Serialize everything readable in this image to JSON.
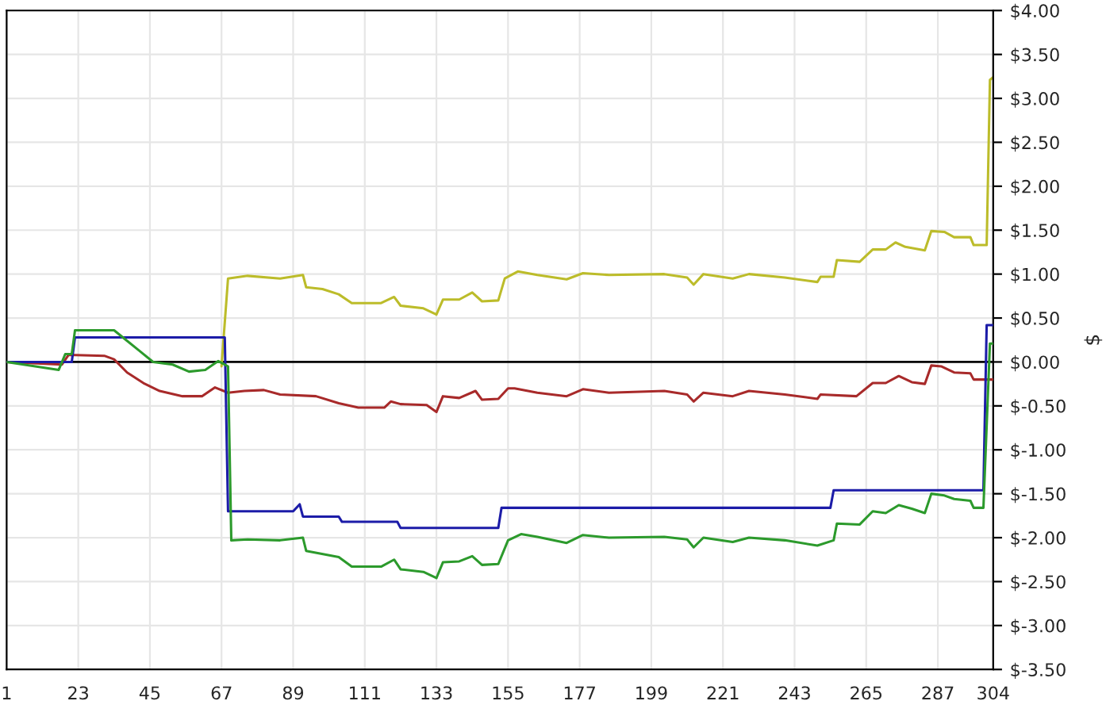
{
  "chart_data": {
    "type": "line",
    "ylabel": "$",
    "xlim": [
      1,
      304
    ],
    "ylim": [
      -3.5,
      4
    ],
    "xticks": [
      1,
      23,
      45,
      67,
      89,
      111,
      133,
      155,
      177,
      199,
      221,
      243,
      265,
      287,
      304
    ],
    "yticks": [
      {
        "value": 4,
        "label": "$4.00"
      },
      {
        "value": 3.5,
        "label": "$3.50"
      },
      {
        "value": 3,
        "label": "$3.00"
      },
      {
        "value": 2.5,
        "label": "$2.50"
      },
      {
        "value": 2,
        "label": "$2.00"
      },
      {
        "value": 1.5,
        "label": "$1.50"
      },
      {
        "value": 1,
        "label": "$1.00"
      },
      {
        "value": 0.5,
        "label": "$0.50"
      },
      {
        "value": 0,
        "label": "$0.00"
      },
      {
        "value": -0.5,
        "label": "$-0.50"
      },
      {
        "value": -1,
        "label": "$-1.00"
      },
      {
        "value": -1.5,
        "label": "$-1.50"
      },
      {
        "value": -2,
        "label": "$-2.00"
      },
      {
        "value": -2.5,
        "label": "$-2.50"
      },
      {
        "value": -3,
        "label": "$-3.00"
      },
      {
        "value": -3.5,
        "label": "$-3.50"
      }
    ],
    "grid": true,
    "marker": "none",
    "line_style": "solid",
    "ref_lines": [
      {
        "axis": "y",
        "value": 0,
        "color": "#000000"
      }
    ],
    "series": [
      {
        "color": "#bcbc2a",
        "x": [
          67,
          69,
          75,
          85,
          92,
          93,
          98,
          103,
          107,
          116,
          120,
          122,
          129,
          133,
          135,
          140,
          144,
          147,
          152,
          154,
          158,
          164,
          173,
          178,
          186,
          203,
          210,
          212,
          215,
          224,
          229,
          240,
          250,
          251,
          255,
          256,
          263,
          267,
          271,
          274,
          277,
          283,
          285,
          289,
          292,
          297,
          298,
          302,
          303,
          304
        ],
        "values": [
          -0.05,
          0.95,
          0.98,
          0.95,
          0.99,
          0.85,
          0.83,
          0.77,
          0.67,
          0.67,
          0.74,
          0.64,
          0.61,
          0.54,
          0.71,
          0.71,
          0.79,
          0.69,
          0.7,
          0.95,
          1.03,
          0.99,
          0.94,
          1.01,
          0.99,
          1.0,
          0.96,
          0.88,
          1.0,
          0.95,
          1.0,
          0.96,
          0.91,
          0.97,
          0.97,
          1.16,
          1.14,
          1.28,
          1.28,
          1.36,
          1.31,
          1.27,
          1.49,
          1.48,
          1.42,
          1.42,
          1.33,
          1.33,
          3.21,
          3.24
        ]
      },
      {
        "color": "#a82a2a",
        "x": [
          1,
          18,
          20,
          31,
          34,
          38,
          43,
          48,
          55,
          61,
          65,
          69,
          74,
          80,
          85,
          96,
          103,
          109,
          117,
          119,
          122,
          130,
          133,
          135,
          140,
          145,
          147,
          152,
          155,
          157,
          164,
          173,
          178,
          186,
          203,
          210,
          212,
          215,
          224,
          229,
          240,
          250,
          251,
          262,
          267,
          271,
          275,
          279,
          283,
          285,
          288,
          292,
          297,
          298,
          304
        ],
        "values": [
          0.0,
          -0.03,
          0.08,
          0.07,
          0.03,
          -0.12,
          -0.24,
          -0.33,
          -0.39,
          -0.39,
          -0.29,
          -0.35,
          -0.33,
          -0.32,
          -0.37,
          -0.39,
          -0.47,
          -0.52,
          -0.52,
          -0.45,
          -0.48,
          -0.49,
          -0.57,
          -0.39,
          -0.41,
          -0.33,
          -0.43,
          -0.42,
          -0.3,
          -0.3,
          -0.35,
          -0.39,
          -0.31,
          -0.35,
          -0.33,
          -0.37,
          -0.45,
          -0.35,
          -0.39,
          -0.33,
          -0.37,
          -0.42,
          -0.37,
          -0.39,
          -0.24,
          -0.24,
          -0.16,
          -0.23,
          -0.25,
          -0.04,
          -0.05,
          -0.12,
          -0.13,
          -0.2,
          -0.2
        ]
      },
      {
        "color": "#1c1ca8",
        "x": [
          1,
          21,
          22,
          68,
          69,
          89,
          91,
          92,
          103,
          104,
          121,
          122,
          152,
          153,
          254,
          255,
          301,
          302,
          304
        ],
        "values": [
          0.0,
          0.0,
          0.28,
          0.28,
          -1.7,
          -1.7,
          -1.62,
          -1.76,
          -1.76,
          -1.82,
          -1.82,
          -1.89,
          -1.89,
          -1.66,
          -1.66,
          -1.46,
          -1.46,
          0.42,
          0.42
        ]
      },
      {
        "color": "#2c9a2c",
        "x": [
          1,
          17,
          19,
          21,
          22,
          34,
          37,
          42,
          46,
          52,
          57,
          62,
          66,
          69,
          70,
          75,
          85,
          92,
          93,
          103,
          107,
          116,
          120,
          122,
          129,
          133,
          135,
          140,
          144,
          147,
          152,
          155,
          159,
          164,
          173,
          178,
          186,
          203,
          210,
          212,
          215,
          224,
          229,
          240,
          250,
          255,
          256,
          263,
          267,
          271,
          275,
          279,
          283,
          285,
          289,
          292,
          297,
          298,
          301,
          303,
          304
        ],
        "values": [
          0.0,
          -0.09,
          0.09,
          0.09,
          0.36,
          0.36,
          0.27,
          0.12,
          0.0,
          -0.03,
          -0.11,
          -0.09,
          0.01,
          -0.05,
          -2.03,
          -2.02,
          -2.03,
          -2.0,
          -2.15,
          -2.22,
          -2.33,
          -2.33,
          -2.25,
          -2.36,
          -2.39,
          -2.46,
          -2.28,
          -2.27,
          -2.21,
          -2.31,
          -2.3,
          -2.03,
          -1.96,
          -1.99,
          -2.06,
          -1.97,
          -2.0,
          -1.99,
          -2.02,
          -2.11,
          -2.0,
          -2.05,
          -2.0,
          -2.03,
          -2.09,
          -2.03,
          -1.84,
          -1.85,
          -1.7,
          -1.72,
          -1.63,
          -1.67,
          -1.72,
          -1.5,
          -1.52,
          -1.56,
          -1.58,
          -1.66,
          -1.66,
          0.21,
          0.21
        ]
      }
    ]
  }
}
